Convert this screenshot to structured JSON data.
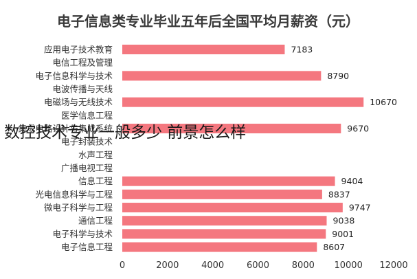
{
  "chart_data": {
    "type": "bar",
    "orientation": "horizontal",
    "title": "电子信息类专业毕业五年后全国平均月薪资（元）",
    "categories": [
      "应用电子技术教育",
      "电信工程及管理",
      "电子信息科学与技术",
      "电波传播与天线",
      "电磁场与无线技术",
      "医学信息工程",
      "集成电路设计与集成系统",
      "电子封装技术",
      "水声工程",
      "广播电视工程",
      "信息工程",
      "光电信息科学与工程",
      "微电子科学与工程",
      "通信工程",
      "电子科学与技术",
      "电子信息工程"
    ],
    "values": [
      7183,
      null,
      8790,
      null,
      10670,
      null,
      9670,
      null,
      null,
      null,
      9404,
      8837,
      9747,
      9038,
      9001,
      8607
    ],
    "value_labels": [
      "7183",
      "",
      "8790",
      "",
      "10670",
      "",
      "9670",
      "",
      "",
      "",
      "9404",
      "8837",
      "9747",
      "9038",
      "9001",
      "8607"
    ],
    "xlim": [
      0,
      12000
    ],
    "x_ticks": [
      0,
      2000,
      4000,
      6000,
      8000,
      10000,
      12000
    ],
    "x_tick_labels": [
      "0",
      "2000",
      "4000",
      "6000",
      "8000",
      "10000",
      "12000"
    ],
    "xlabel": "",
    "ylabel": "",
    "grid": false,
    "legend": "none",
    "bar_color": "#f4777f"
  },
  "overlay_text": "数控技术专业一般多少 前景怎么样"
}
